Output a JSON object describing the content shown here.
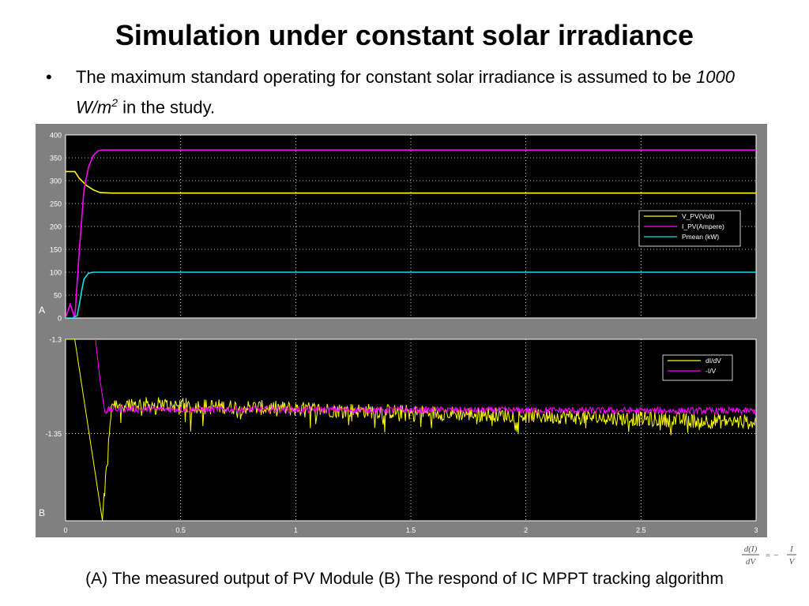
{
  "slide": {
    "title": "Simulation under constant solar irradiance",
    "bullet": {
      "symbol": "•",
      "text_before": "The maximum standard operating for constant solar irradiance is assumed to be ",
      "italic_value": "1000 W/m",
      "superscript": "2",
      "text_after": " in the study."
    },
    "caption": "(A) The measured output of PV Module  (B) The respond of IC MPPT tracking algorithm",
    "formula": {
      "numerator_left": "d(I)",
      "denominator_left": "dV",
      "operator": "= −",
      "numerator_right": "I",
      "denominator_right": "V"
    }
  },
  "colors": {
    "scope_bg": "#808080",
    "plot_bg": "#000000",
    "axis_text": "#ffffff",
    "grid": "#ffffff",
    "yellow": "#ffff00",
    "magenta": "#ff00ff",
    "cyan": "#00e5e5"
  },
  "chart_data": [
    {
      "type": "line",
      "panel_label": "A",
      "xlim": [
        0,
        3
      ],
      "ylim": [
        0,
        400
      ],
      "yticks": [
        "0",
        "50",
        "100",
        "150",
        "200",
        "250",
        "300",
        "350",
        "400"
      ],
      "grid": true,
      "legend_position": "right",
      "series": [
        {
          "name": "V_PV(Volt)",
          "color": "yellow",
          "x": [
            0,
            0.04,
            0.06,
            0.09,
            0.12,
            0.15,
            0.2,
            1,
            2,
            3
          ],
          "y": [
            320,
            320,
            305,
            290,
            280,
            274,
            273,
            273,
            273,
            273
          ]
        },
        {
          "name": "I_PV(Ampere)",
          "color": "magenta",
          "x": [
            0,
            0.02,
            0.04,
            0.06,
            0.08,
            0.1,
            0.12,
            0.14,
            0.16,
            0.2,
            1,
            2,
            3
          ],
          "y": [
            0,
            30,
            0,
            150,
            280,
            330,
            355,
            365,
            367,
            367,
            367,
            367,
            367
          ]
        },
        {
          "name": "Pmean (kW)",
          "color": "cyan",
          "x": [
            0,
            0.03,
            0.05,
            0.06,
            0.07,
            0.08,
            0.1,
            0.12,
            0.15,
            1,
            2,
            3
          ],
          "y": [
            0,
            0,
            5,
            30,
            60,
            85,
            98,
            100,
            100,
            100,
            100,
            100
          ]
        }
      ]
    },
    {
      "type": "line",
      "panel_label": "B",
      "xlim": [
        0,
        3
      ],
      "ylim": [
        -1.3962,
        -1.3
      ],
      "xticks": [
        "0",
        "0.5",
        "1",
        "1.5",
        "2",
        "2.5",
        "3"
      ],
      "yticks": [
        "-1.3",
        "-1.35"
      ],
      "grid": true,
      "legend_position": "top-right",
      "series": [
        {
          "name": "dI/dV",
          "color": "yellow",
          "x": [
            0,
            0.04,
            0.16,
            0.2,
            3
          ],
          "y": [
            -1.3,
            -1.3,
            -1.396,
            -1.334,
            -1.344
          ],
          "noise_amplitude": 0.004
        },
        {
          "name": "-I/V",
          "color": "magenta",
          "x": [
            0.13,
            0.15,
            0.17,
            0.2,
            3
          ],
          "y": [
            -1.3,
            -1.322,
            -1.338,
            -1.337,
            -1.338
          ],
          "noise_amplitude": 0.0018
        }
      ]
    }
  ]
}
